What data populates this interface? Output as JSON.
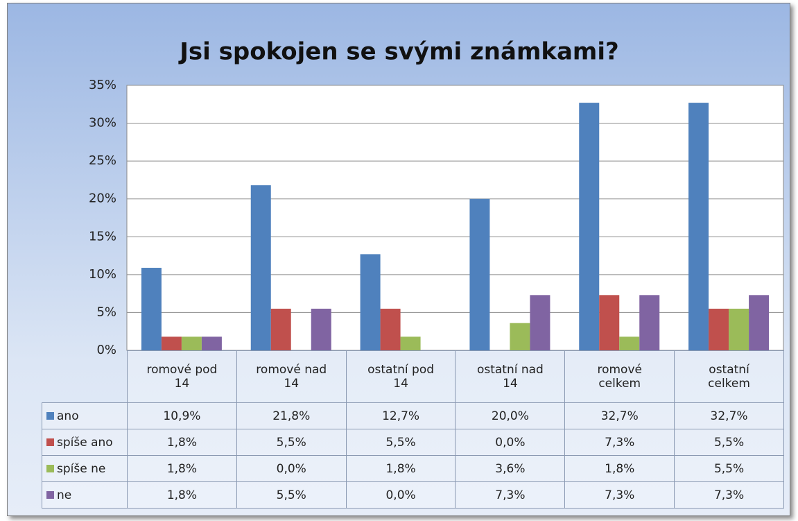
{
  "chart_data": {
    "type": "bar",
    "title": "Jsi spokojen se svými známkami?",
    "categories": [
      "romové pod 14",
      "romové nad 14",
      "ostatní pod 14",
      "ostatní nad 14",
      "romové celkem",
      "ostatní celkem"
    ],
    "series": [
      {
        "name": "ano",
        "color": "#4f81bd",
        "values": [
          10.9,
          21.8,
          12.7,
          20.0,
          32.7,
          32.7
        ],
        "value_labels": [
          "10,9%",
          "21,8%",
          "12,7%",
          "20,0%",
          "32,7%",
          "32,7%"
        ]
      },
      {
        "name": "spíše ano",
        "color": "#c0504d",
        "values": [
          1.8,
          5.5,
          5.5,
          0.0,
          7.3,
          5.5
        ],
        "value_labels": [
          "1,8%",
          "5,5%",
          "5,5%",
          "0,0%",
          "7,3%",
          "5,5%"
        ]
      },
      {
        "name": "spíše ne",
        "color": "#9bbb59",
        "values": [
          1.8,
          0.0,
          1.8,
          3.6,
          1.8,
          5.5
        ],
        "value_labels": [
          "1,8%",
          "0,0%",
          "1,8%",
          "3,6%",
          "1,8%",
          "5,5%"
        ]
      },
      {
        "name": "ne",
        "color": "#8064a2",
        "values": [
          1.8,
          5.5,
          0.0,
          7.3,
          7.3,
          7.3
        ],
        "value_labels": [
          "1,8%",
          "5,5%",
          "0,0%",
          "7,3%",
          "7,3%",
          "7,3%"
        ]
      }
    ],
    "ylim": [
      0,
      35
    ],
    "yticks": [
      {
        "value": 0,
        "label": "0%"
      },
      {
        "value": 5,
        "label": "5%"
      },
      {
        "value": 10,
        "label": "10%"
      },
      {
        "value": 15,
        "label": "15%"
      },
      {
        "value": 20,
        "label": "20%"
      },
      {
        "value": 25,
        "label": "25%"
      },
      {
        "value": 30,
        "label": "30%"
      },
      {
        "value": 35,
        "label": "35%"
      }
    ],
    "grid": true
  }
}
